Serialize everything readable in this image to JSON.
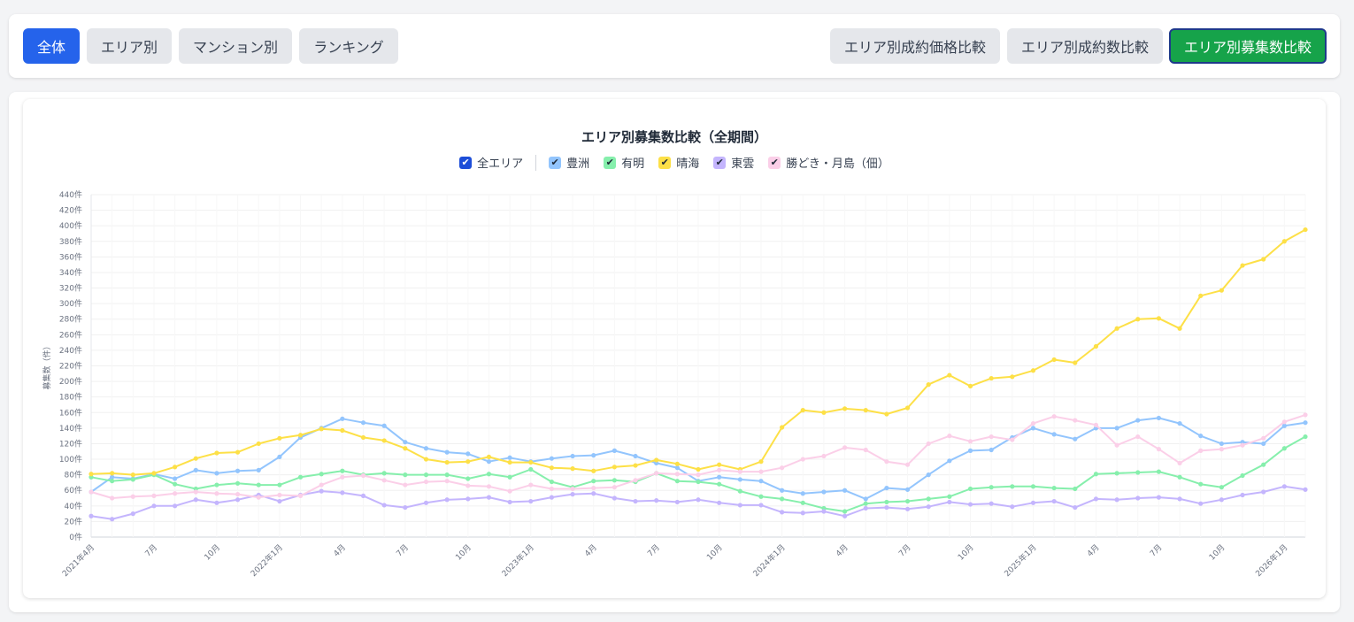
{
  "toolbar": {
    "left": [
      "全体",
      "エリア別",
      "マンション別",
      "ランキング"
    ],
    "right": [
      "エリア別成約価格比較",
      "エリア別成約数比較",
      "エリア別募集数比較"
    ]
  },
  "colors": {
    "toyosu": "#93c5fd",
    "ariake": "#86efac",
    "harumi": "#fde047",
    "shinonome": "#c4b5fd",
    "kachidoki": "#fbcfe8"
  },
  "legend": {
    "all_label": "全エリア",
    "items": [
      "豊洲",
      "有明",
      "晴海",
      "東雲",
      "勝どき・月島（佃）"
    ]
  },
  "chart_data": {
    "type": "line",
    "title": "エリア別募集数比較（全期間）",
    "ylabel": "募集数（件）",
    "xlabel": "",
    "ylim": [
      0,
      440
    ],
    "y_tick_step": 20,
    "y_tick_suffix": "件",
    "grid": true,
    "x": [
      "2021-04",
      "2021-05",
      "2021-06",
      "2021-07",
      "2021-08",
      "2021-09",
      "2021-10",
      "2021-11",
      "2021-12",
      "2022-01",
      "2022-02",
      "2022-03",
      "2022-04",
      "2022-05",
      "2022-06",
      "2022-07",
      "2022-08",
      "2022-09",
      "2022-10",
      "2022-11",
      "2022-12",
      "2023-01",
      "2023-02",
      "2023-03",
      "2023-04",
      "2023-05",
      "2023-06",
      "2023-07",
      "2023-08",
      "2023-09",
      "2023-10",
      "2023-11",
      "2023-12",
      "2024-01",
      "2024-02",
      "2024-03",
      "2024-04",
      "2024-05",
      "2024-06",
      "2024-07",
      "2024-08",
      "2024-09",
      "2024-10",
      "2024-11",
      "2024-12",
      "2025-01",
      "2025-02",
      "2025-03",
      "2025-04",
      "2025-05",
      "2025-06",
      "2025-07",
      "2025-08",
      "2025-09",
      "2025-10",
      "2025-11",
      "2025-12",
      "2026-01",
      "2026-02"
    ],
    "x_tick_labels": [
      {
        "i": 0,
        "label": "2021年4月"
      },
      {
        "i": 3,
        "label": "7月"
      },
      {
        "i": 6,
        "label": "10月"
      },
      {
        "i": 9,
        "label": "2022年1月"
      },
      {
        "i": 12,
        "label": "4月"
      },
      {
        "i": 15,
        "label": "7月"
      },
      {
        "i": 18,
        "label": "10月"
      },
      {
        "i": 21,
        "label": "2023年1月"
      },
      {
        "i": 24,
        "label": "4月"
      },
      {
        "i": 27,
        "label": "7月"
      },
      {
        "i": 30,
        "label": "10月"
      },
      {
        "i": 33,
        "label": "2024年1月"
      },
      {
        "i": 36,
        "label": "4月"
      },
      {
        "i": 39,
        "label": "7月"
      },
      {
        "i": 42,
        "label": "10月"
      },
      {
        "i": 45,
        "label": "2025年1月"
      },
      {
        "i": 48,
        "label": "4月"
      },
      {
        "i": 51,
        "label": "7月"
      },
      {
        "i": 54,
        "label": "10月"
      },
      {
        "i": 57,
        "label": "2026年1月"
      }
    ],
    "series": [
      {
        "name": "豊洲",
        "color": "#93c5fd",
        "values": [
          58,
          77,
          75,
          81,
          75,
          86,
          82,
          85,
          86,
          103,
          128,
          140,
          152,
          147,
          143,
          122,
          114,
          109,
          107,
          97,
          102,
          97,
          101,
          104,
          105,
          111,
          104,
          95,
          89,
          72,
          77,
          74,
          72,
          60,
          56,
          58,
          60,
          49,
          63,
          61,
          80,
          98,
          111,
          112,
          128,
          140,
          132,
          126,
          140,
          140,
          150,
          153,
          146,
          130,
          120,
          122,
          120,
          143,
          147
        ]
      },
      {
        "name": "有明",
        "color": "#86efac",
        "values": [
          77,
          72,
          74,
          80,
          68,
          62,
          67,
          69,
          67,
          67,
          77,
          81,
          85,
          80,
          82,
          80,
          80,
          80,
          75,
          81,
          77,
          87,
          71,
          64,
          72,
          73,
          71,
          82,
          72,
          71,
          68,
          59,
          52,
          49,
          44,
          37,
          33,
          43,
          45,
          46,
          49,
          52,
          62,
          64,
          65,
          65,
          63,
          62,
          81,
          82,
          83,
          84,
          77,
          68,
          64,
          79,
          93,
          114,
          129
        ]
      },
      {
        "name": "晴海",
        "color": "#fde047",
        "values": [
          81,
          82,
          80,
          82,
          90,
          101,
          108,
          109,
          120,
          127,
          131,
          139,
          137,
          128,
          124,
          114,
          100,
          96,
          97,
          103,
          96,
          96,
          89,
          88,
          85,
          90,
          92,
          99,
          94,
          87,
          93,
          87,
          97,
          141,
          163,
          160,
          165,
          163,
          158,
          166,
          196,
          208,
          194,
          204,
          206,
          214,
          228,
          224,
          245,
          268,
          280,
          281,
          268,
          310,
          317,
          349,
          357,
          380,
          395
        ]
      },
      {
        "name": "東雲",
        "color": "#c4b5fd",
        "values": [
          27,
          23,
          30,
          40,
          40,
          48,
          44,
          48,
          54,
          46,
          54,
          59,
          57,
          53,
          41,
          38,
          44,
          48,
          49,
          51,
          45,
          46,
          51,
          55,
          56,
          50,
          46,
          47,
          45,
          48,
          44,
          41,
          41,
          32,
          31,
          33,
          27,
          37,
          38,
          36,
          39,
          45,
          42,
          43,
          39,
          44,
          46,
          38,
          49,
          48,
          50,
          51,
          49,
          43,
          48,
          54,
          58,
          65,
          61
        ]
      },
      {
        "name": "勝どき・月島（佃）",
        "color": "#fbcfe8",
        "values": [
          58,
          50,
          52,
          53,
          56,
          58,
          56,
          55,
          51,
          54,
          53,
          67,
          77,
          79,
          73,
          67,
          71,
          72,
          66,
          65,
          59,
          67,
          62,
          62,
          63,
          64,
          73,
          82,
          81,
          80,
          86,
          84,
          84,
          89,
          100,
          104,
          115,
          112,
          97,
          93,
          120,
          130,
          123,
          129,
          125,
          146,
          155,
          150,
          144,
          118,
          129,
          113,
          95,
          111,
          113,
          118,
          127,
          148,
          157
        ]
      }
    ]
  }
}
